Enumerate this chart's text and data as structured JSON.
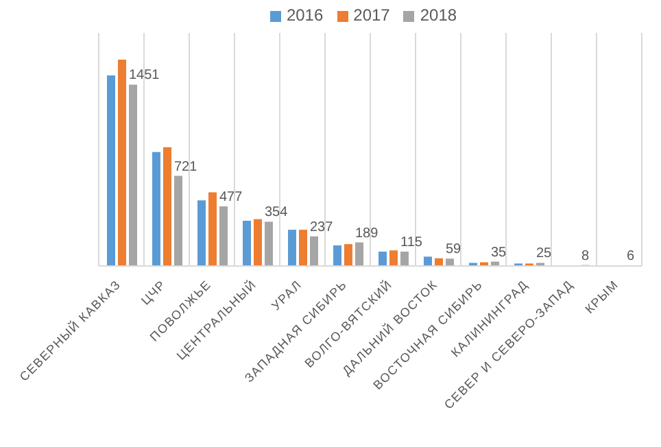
{
  "chart_data": {
    "type": "bar",
    "categories": [
      "СЕВЕРНЫЙ КАВКАЗ",
      "ЦЧР",
      "ПОВОЛЖЬЕ",
      "ЦЕНТРАЛЬНЫЙ",
      "УРАЛ",
      "ЗАПАДНАЯ СИБИРЬ",
      "ВОЛГО-ВЯТСКИЙ",
      "ДАЛЬНИЙ ВОСТОК",
      "ВОСТОЧНАЯ СИБИРЬ",
      "КАЛИНИНГРАД",
      "СЕВЕР И СЕВЕРО-ЗАПАД",
      "КРЫМ"
    ],
    "series": [
      {
        "name": "2016",
        "color": "#5b9bd5",
        "values": [
          1525,
          912,
          525,
          362,
          290,
          165,
          115,
          75,
          25,
          20,
          null,
          null
        ]
      },
      {
        "name": "2017",
        "color": "#ed7d31",
        "values": [
          1650,
          950,
          590,
          375,
          290,
          175,
          125,
          62,
          30,
          20,
          null,
          null
        ]
      },
      {
        "name": "2018",
        "color": "#a5a5a5",
        "values": [
          1451,
          721,
          477,
          354,
          237,
          189,
          115,
          59,
          35,
          25,
          8,
          6
        ],
        "value_labels": [
          "1451",
          "721",
          "477",
          "354",
          "237",
          "189",
          "115",
          "59",
          "35",
          "25",
          "8",
          "6"
        ]
      }
    ],
    "grid": "x",
    "legend": "top"
  }
}
